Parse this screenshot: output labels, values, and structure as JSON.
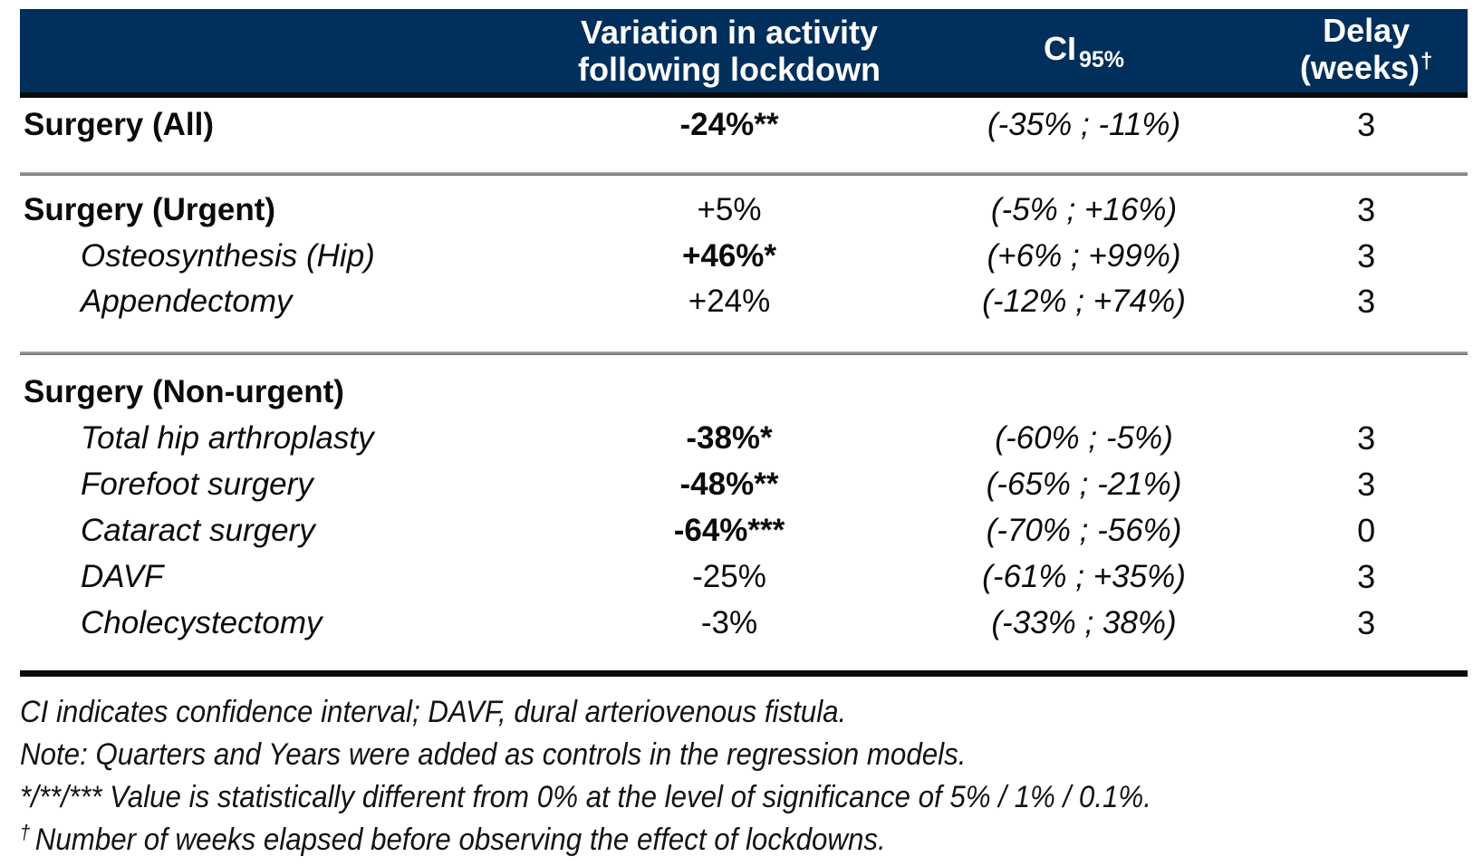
{
  "table": {
    "header": {
      "col_label": "",
      "variation_line1": "Variation in activity",
      "variation_line2": "following lockdown",
      "ci_label": "CI",
      "ci_sub": "95%",
      "delay_line1": "Delay",
      "delay_line2": "(weeks)",
      "delay_dagger": "†"
    },
    "rows": [
      {
        "label": "Surgery (All)",
        "variation": "-24%**",
        "ci": "(-35% ; -11%)",
        "delay": "3"
      },
      {
        "label": "Surgery (Urgent)",
        "variation": "+5%",
        "ci": "(-5% ; +16%)",
        "delay": "3"
      },
      {
        "label": "Osteosynthesis (Hip)",
        "variation": "+46%*",
        "ci": "(+6% ; +99%)",
        "delay": "3"
      },
      {
        "label": "Appendectomy",
        "variation": "+24%",
        "ci": "(-12% ; +74%)",
        "delay": "3"
      },
      {
        "label": "Surgery (Non-urgent)",
        "variation": "",
        "ci": "",
        "delay": ""
      },
      {
        "label": "Total hip arthroplasty",
        "variation": "-38%*",
        "ci": "(-60% ; -5%)",
        "delay": "3"
      },
      {
        "label": "Forefoot surgery",
        "variation": "-48%**",
        "ci": "(-65% ; -21%)",
        "delay": "3"
      },
      {
        "label": "Cataract surgery",
        "variation": "-64%***",
        "ci": "(-70% ; -56%)",
        "delay": "0"
      },
      {
        "label": "DAVF",
        "variation": "-25%",
        "ci": "(-61% ; +35%)",
        "delay": "3"
      },
      {
        "label": "Cholecystectomy",
        "variation": "-3%",
        "ci": "(-33% ; 38%)",
        "delay": "3"
      }
    ]
  },
  "footnotes": {
    "line1": "CI indicates confidence interval; DAVF, dural arteriovenous fistula.",
    "line2": "Note: Quarters and Years were added as controls in the regression models.",
    "line3": "*/**/*** Value is statistically different from 0% at the level of significance of 5% / 1% / 0.1%.",
    "line4_dagger": "†",
    "line4": "Number of weeks elapsed before observing the effect of lockdowns."
  },
  "colors": {
    "header_bg": "#002F5C",
    "header_text": "#FFFFFF",
    "body_text": "#0B0B0B"
  }
}
